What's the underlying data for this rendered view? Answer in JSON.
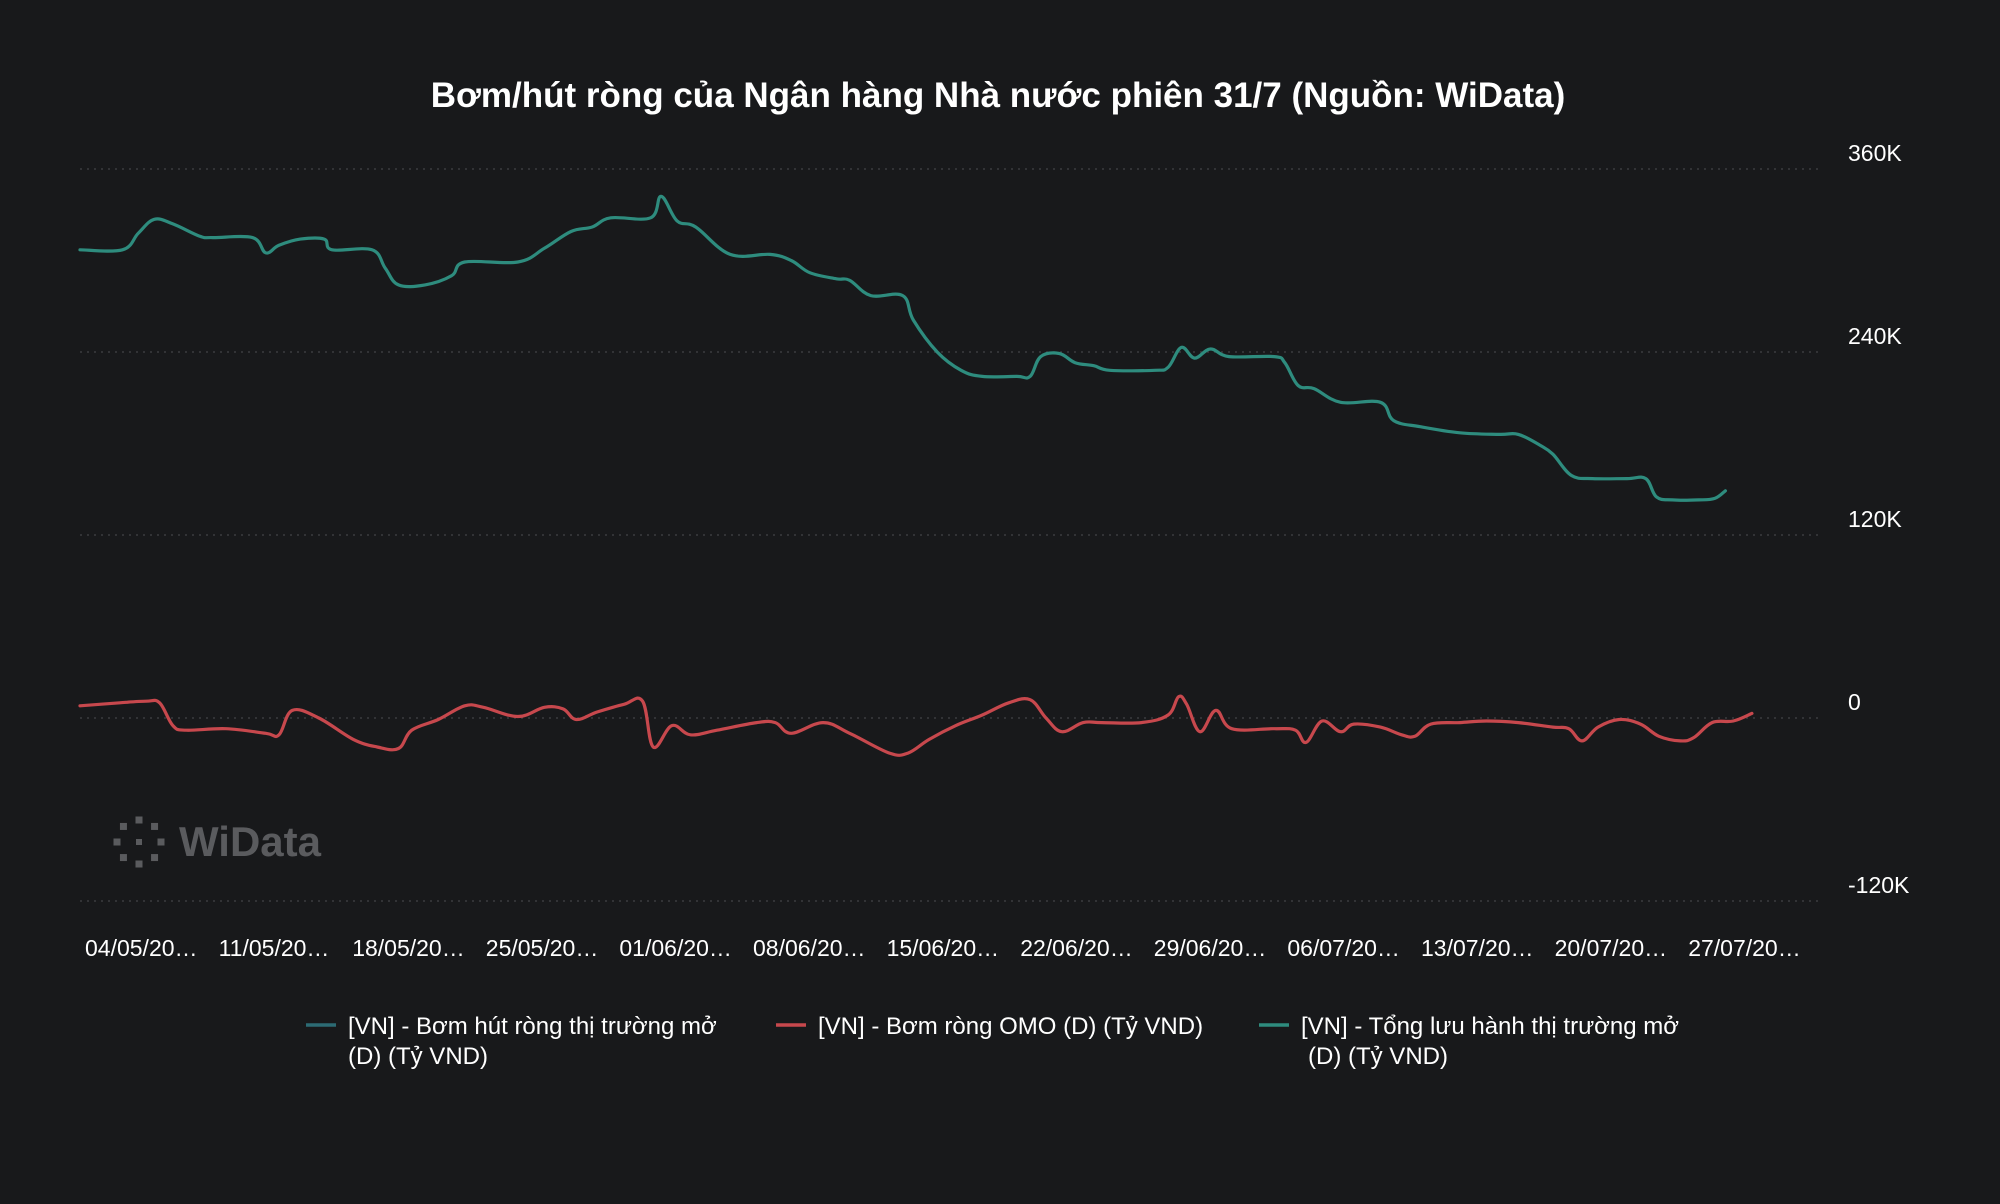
{
  "chart_data": {
    "type": "line",
    "title": "Bơm/hút ròng của Ngân hàng Nhà nước phiên 31/7 (Nguồn: WiData)",
    "x_tick_labels": [
      "04/05/20…",
      "11/05/20…",
      "18/05/20…",
      "25/05/20…",
      "01/06/20…",
      "08/06/20…",
      "15/06/20…",
      "22/06/20…",
      "29/06/20…",
      "06/07/20…",
      "13/07/20…",
      "20/07/20…",
      "27/07/20…"
    ],
    "y_tick_labels": [
      "360K",
      "240K",
      "120K",
      "0",
      "-120K"
    ],
    "y_tick_values": [
      360000,
      240000,
      120000,
      0,
      -120000
    ],
    "ylim": [
      -120000,
      360000
    ],
    "grid": true,
    "legend_position": "bottom",
    "watermark": "WiData",
    "x_range": [
      0,
      65
    ],
    "series": [
      {
        "name": "[VN] - Bơm hút ròng thị trường mở (D) (Tỷ VND)",
        "legend_lines": [
          "[VN] - Bơm hút ròng thị trường mở",
          "(D) (Tỷ VND)"
        ],
        "color": "#2c6b74",
        "values": []
      },
      {
        "name": "[VN] - Bơm ròng OMO (D) (Tỷ VND)",
        "legend_lines": [
          "[VN] - Bơm ròng OMO (D) (Tỷ VND)"
        ],
        "color": "#c7484d",
        "points": [
          [
            0,
            8000
          ],
          [
            1.5,
            10000
          ],
          [
            2.5,
            11000
          ],
          [
            3,
            10000
          ],
          [
            3.5,
            -5000
          ],
          [
            4,
            -8000
          ],
          [
            5.5,
            -7000
          ],
          [
            7,
            -10000
          ],
          [
            7.5,
            -11000
          ],
          [
            8,
            5000
          ],
          [
            9,
            0
          ],
          [
            10.3,
            -14000
          ],
          [
            11.2,
            -19000
          ],
          [
            12,
            -20000
          ],
          [
            12.5,
            -8000
          ],
          [
            13.5,
            -1000
          ],
          [
            14.5,
            8000
          ],
          [
            15.2,
            7000
          ],
          [
            16.5,
            1000
          ],
          [
            17.5,
            7000
          ],
          [
            18.2,
            6000
          ],
          [
            18.7,
            -1000
          ],
          [
            19.5,
            4000
          ],
          [
            20.5,
            9000
          ],
          [
            21.2,
            11000
          ],
          [
            21.6,
            -19000
          ],
          [
            22.3,
            -5000
          ],
          [
            23,
            -11000
          ],
          [
            24,
            -8000
          ],
          [
            25.5,
            -3000
          ],
          [
            26.2,
            -3000
          ],
          [
            26.8,
            -10000
          ],
          [
            28,
            -3000
          ],
          [
            29,
            -10000
          ],
          [
            30.5,
            -23000
          ],
          [
            31.2,
            -23000
          ],
          [
            32,
            -14000
          ],
          [
            33,
            -5000
          ],
          [
            34,
            2000
          ],
          [
            35,
            10000
          ],
          [
            35.8,
            12000
          ],
          [
            36.4,
            0
          ],
          [
            37,
            -9000
          ],
          [
            37.8,
            -3000
          ],
          [
            38.5,
            -3000
          ],
          [
            40,
            -3000
          ],
          [
            41,
            2000
          ],
          [
            41.4,
            14000
          ],
          [
            41.7,
            9000
          ],
          [
            42.2,
            -9000
          ],
          [
            42.8,
            5000
          ],
          [
            43.4,
            -7000
          ],
          [
            45,
            -7000
          ],
          [
            45.8,
            -8000
          ],
          [
            46.2,
            -16000
          ],
          [
            46.8,
            -2000
          ],
          [
            47.5,
            -9000
          ],
          [
            48,
            -4000
          ],
          [
            49,
            -6000
          ],
          [
            49.8,
            -11000
          ],
          [
            50.3,
            -12000
          ],
          [
            50.9,
            -4000
          ],
          [
            52,
            -3000
          ],
          [
            53,
            -2000
          ],
          [
            54.2,
            -3000
          ],
          [
            55.5,
            -6000
          ],
          [
            56.1,
            -7000
          ],
          [
            56.6,
            -15000
          ],
          [
            57.2,
            -6000
          ],
          [
            58,
            -1000
          ],
          [
            58.8,
            -4000
          ],
          [
            59.5,
            -12000
          ],
          [
            60.3,
            -15000
          ],
          [
            60.8,
            -13000
          ],
          [
            61.5,
            -3000
          ],
          [
            62.3,
            -2000
          ],
          [
            63,
            3000
          ]
        ]
      },
      {
        "name": "[VN] - Tổng lưu hành thị trường mở (D) (Tỷ VND)",
        "legend_lines": [
          "[VN] - Tổng lưu hành thị trường mở",
          "(D) (Tỷ VND)"
        ],
        "color": "#2e8c7e",
        "points": [
          [
            0,
            307000
          ],
          [
            1.6,
            307000
          ],
          [
            2.2,
            318000
          ],
          [
            2.8,
            327000
          ],
          [
            3.5,
            324000
          ],
          [
            4.5,
            316000
          ],
          [
            5,
            315000
          ],
          [
            6.5,
            315000
          ],
          [
            7,
            305000
          ],
          [
            7.5,
            310000
          ],
          [
            8.3,
            314000
          ],
          [
            9.2,
            314000
          ],
          [
            9.5,
            307000
          ],
          [
            11,
            307000
          ],
          [
            11.5,
            295000
          ],
          [
            12,
            284000
          ],
          [
            13,
            284000
          ],
          [
            14,
            290000
          ],
          [
            14.5,
            299000
          ],
          [
            16.5,
            299000
          ],
          [
            17.5,
            308000
          ],
          [
            18.5,
            319000
          ],
          [
            19.3,
            322000
          ],
          [
            20,
            328000
          ],
          [
            21.5,
            328000
          ],
          [
            21.9,
            342000
          ],
          [
            22.5,
            326000
          ],
          [
            23.2,
            322000
          ],
          [
            24.5,
            304000
          ],
          [
            26,
            304000
          ],
          [
            26.8,
            300000
          ],
          [
            27.5,
            292000
          ],
          [
            28.5,
            288000
          ],
          [
            29,
            287000
          ],
          [
            29.8,
            277000
          ],
          [
            31,
            277000
          ],
          [
            31.4,
            261000
          ],
          [
            32.3,
            240000
          ],
          [
            33.2,
            228000
          ],
          [
            34,
            224000
          ],
          [
            35.3,
            224000
          ],
          [
            35.8,
            224000
          ],
          [
            36.2,
            237000
          ],
          [
            36.9,
            239000
          ],
          [
            37.5,
            233000
          ],
          [
            38.2,
            231000
          ],
          [
            38.8,
            228000
          ],
          [
            40.5,
            228000
          ],
          [
            41,
            230000
          ],
          [
            41.5,
            243000
          ],
          [
            42,
            236000
          ],
          [
            42.6,
            242000
          ],
          [
            43.3,
            237000
          ],
          [
            45,
            237000
          ],
          [
            45.4,
            233000
          ],
          [
            45.9,
            218000
          ],
          [
            46.5,
            216000
          ],
          [
            47.5,
            207000
          ],
          [
            49,
            207000
          ],
          [
            49.5,
            195000
          ],
          [
            50.5,
            191000
          ],
          [
            52,
            187000
          ],
          [
            53.5,
            186000
          ],
          [
            54.2,
            186000
          ],
          [
            55,
            179000
          ],
          [
            55.5,
            173000
          ],
          [
            56.2,
            159000
          ],
          [
            57,
            157000
          ],
          [
            58.3,
            157000
          ],
          [
            59,
            157000
          ],
          [
            59.4,
            145000
          ],
          [
            60,
            143000
          ],
          [
            61,
            143000
          ],
          [
            61.6,
            144000
          ],
          [
            62,
            149000
          ]
        ]
      }
    ]
  }
}
